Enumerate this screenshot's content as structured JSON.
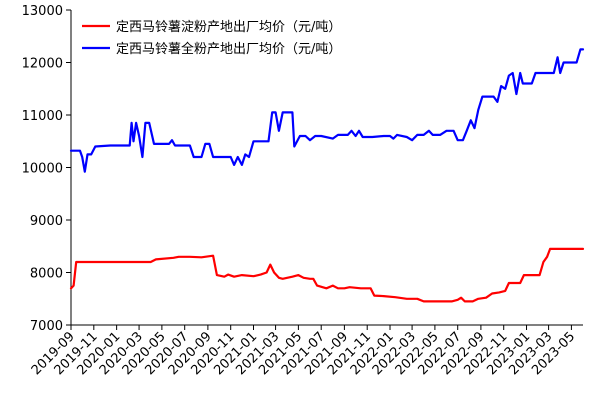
{
  "chart_data": {
    "type": "line",
    "title": "",
    "xlabel": "",
    "ylabel": "",
    "ylim": [
      7000,
      13000
    ],
    "yticks": [
      7000,
      8000,
      9000,
      10000,
      11000,
      12000,
      13000
    ],
    "xlim": [
      "2019-09",
      "2023-06"
    ],
    "xticks": [
      "2019-09",
      "2019-11",
      "2020-01",
      "2020-03",
      "2020-05",
      "2020-07",
      "2020-09",
      "2020-11",
      "2021-01",
      "2021-03",
      "2021-05",
      "2021-07",
      "2021-09",
      "2021-11",
      "2022-01",
      "2022-03",
      "2022-05",
      "2022-07",
      "2022-09",
      "2022-11",
      "2023-01",
      "2023-03",
      "2023-05"
    ],
    "grid": false,
    "legend": "top-left",
    "series": [
      {
        "name": "定西马铃薯淀粉产地出厂均价（元/吨）",
        "color": "#ff0000",
        "points": [
          [
            "2019-09-01",
            7700
          ],
          [
            "2019-09-08",
            7750
          ],
          [
            "2019-09-15",
            8200
          ],
          [
            "2019-10-15",
            8200
          ],
          [
            "2019-12-15",
            8200
          ],
          [
            "2020-02-15",
            8200
          ],
          [
            "2020-04-01",
            8200
          ],
          [
            "2020-04-15",
            8250
          ],
          [
            "2020-06-01",
            8280
          ],
          [
            "2020-06-15",
            8300
          ],
          [
            "2020-07-15",
            8300
          ],
          [
            "2020-08-15",
            8290
          ],
          [
            "2020-09-15",
            8320
          ],
          [
            "2020-09-25",
            7950
          ],
          [
            "2020-10-15",
            7920
          ],
          [
            "2020-10-25",
            7960
          ],
          [
            "2020-11-10",
            7920
          ],
          [
            "2020-12-01",
            7950
          ],
          [
            "2021-01-01",
            7930
          ],
          [
            "2021-01-20",
            7960
          ],
          [
            "2021-02-05",
            8000
          ],
          [
            "2021-02-15",
            8150
          ],
          [
            "2021-02-25",
            8000
          ],
          [
            "2021-03-10",
            7900
          ],
          [
            "2021-03-20",
            7880
          ],
          [
            "2021-04-01",
            7900
          ],
          [
            "2021-04-15",
            7920
          ],
          [
            "2021-05-01",
            7950
          ],
          [
            "2021-05-15",
            7900
          ],
          [
            "2021-06-01",
            7880
          ],
          [
            "2021-06-10",
            7880
          ],
          [
            "2021-06-20",
            7750
          ],
          [
            "2021-07-15",
            7700
          ],
          [
            "2021-08-01",
            7750
          ],
          [
            "2021-08-15",
            7700
          ],
          [
            "2021-09-01",
            7700
          ],
          [
            "2021-09-15",
            7720
          ],
          [
            "2021-10-15",
            7700
          ],
          [
            "2021-11-01",
            7700
          ],
          [
            "2021-11-10",
            7700
          ],
          [
            "2021-11-20",
            7560
          ],
          [
            "2021-12-15",
            7550
          ],
          [
            "2022-01-15",
            7530
          ],
          [
            "2022-02-15",
            7500
          ],
          [
            "2022-03-15",
            7500
          ],
          [
            "2022-04-01",
            7450
          ],
          [
            "2022-05-15",
            7450
          ],
          [
            "2022-06-15",
            7450
          ],
          [
            "2022-07-01",
            7480
          ],
          [
            "2022-07-10",
            7520
          ],
          [
            "2022-07-20",
            7450
          ],
          [
            "2022-08-10",
            7450
          ],
          [
            "2022-08-25",
            7500
          ],
          [
            "2022-09-15",
            7520
          ],
          [
            "2022-10-01",
            7600
          ],
          [
            "2022-10-20",
            7620
          ],
          [
            "2022-11-05",
            7650
          ],
          [
            "2022-11-15",
            7800
          ],
          [
            "2022-12-15",
            7800
          ],
          [
            "2022-12-25",
            7950
          ],
          [
            "2023-01-15",
            7950
          ],
          [
            "2023-02-05",
            7950
          ],
          [
            "2023-02-15",
            8200
          ],
          [
            "2023-02-25",
            8300
          ],
          [
            "2023-03-05",
            8450
          ],
          [
            "2023-04-15",
            8450
          ],
          [
            "2023-06-01",
            8450
          ]
        ]
      },
      {
        "name": "定西马铃薯全粉产地出厂均价（元/吨）",
        "color": "#0000ff",
        "points": [
          [
            "2019-09-01",
            10320
          ],
          [
            "2019-09-25",
            10320
          ],
          [
            "2019-10-01",
            10200
          ],
          [
            "2019-10-08",
            9920
          ],
          [
            "2019-10-15",
            10250
          ],
          [
            "2019-10-25",
            10250
          ],
          [
            "2019-11-05",
            10400
          ],
          [
            "2019-12-15",
            10420
          ],
          [
            "2020-01-15",
            10420
          ],
          [
            "2020-02-05",
            10420
          ],
          [
            "2020-02-10",
            10850
          ],
          [
            "2020-02-15",
            10500
          ],
          [
            "2020-02-22",
            10850
          ],
          [
            "2020-03-01",
            10600
          ],
          [
            "2020-03-10",
            10200
          ],
          [
            "2020-03-18",
            10850
          ],
          [
            "2020-03-28",
            10850
          ],
          [
            "2020-04-10",
            10450
          ],
          [
            "2020-05-20",
            10450
          ],
          [
            "2020-05-28",
            10520
          ],
          [
            "2020-06-05",
            10420
          ],
          [
            "2020-07-01",
            10420
          ],
          [
            "2020-07-15",
            10420
          ],
          [
            "2020-07-25",
            10200
          ],
          [
            "2020-08-15",
            10200
          ],
          [
            "2020-08-25",
            10450
          ],
          [
            "2020-09-05",
            10450
          ],
          [
            "2020-09-15",
            10200
          ],
          [
            "2020-10-01",
            10200
          ],
          [
            "2020-10-20",
            10200
          ],
          [
            "2020-11-01",
            10200
          ],
          [
            "2020-11-10",
            10050
          ],
          [
            "2020-11-20",
            10200
          ],
          [
            "2020-12-01",
            10050
          ],
          [
            "2020-12-10",
            10250
          ],
          [
            "2020-12-20",
            10200
          ],
          [
            "2021-01-01",
            10500
          ],
          [
            "2021-01-20",
            10500
          ],
          [
            "2021-02-10",
            10500
          ],
          [
            "2021-02-20",
            11050
          ],
          [
            "2021-03-01",
            11050
          ],
          [
            "2021-03-10",
            10700
          ],
          [
            "2021-03-20",
            11050
          ],
          [
            "2021-04-15",
            11050
          ],
          [
            "2021-04-20",
            10400
          ],
          [
            "2021-05-05",
            10600
          ],
          [
            "2021-05-20",
            10600
          ],
          [
            "2021-06-01",
            10520
          ],
          [
            "2021-06-15",
            10600
          ],
          [
            "2021-07-01",
            10600
          ],
          [
            "2021-08-01",
            10550
          ],
          [
            "2021-08-15",
            10620
          ],
          [
            "2021-09-10",
            10620
          ],
          [
            "2021-09-20",
            10700
          ],
          [
            "2021-10-01",
            10600
          ],
          [
            "2021-10-10",
            10700
          ],
          [
            "2021-10-20",
            10580
          ],
          [
            "2021-11-15",
            10580
          ],
          [
            "2021-12-15",
            10600
          ],
          [
            "2022-01-01",
            10600
          ],
          [
            "2022-01-10",
            10550
          ],
          [
            "2022-01-20",
            10620
          ],
          [
            "2022-02-15",
            10580
          ],
          [
            "2022-03-01",
            10520
          ],
          [
            "2022-03-15",
            10620
          ],
          [
            "2022-04-01",
            10620
          ],
          [
            "2022-04-15",
            10700
          ],
          [
            "2022-04-25",
            10620
          ],
          [
            "2022-05-15",
            10620
          ],
          [
            "2022-06-01",
            10700
          ],
          [
            "2022-06-20",
            10700
          ],
          [
            "2022-07-01",
            10520
          ],
          [
            "2022-07-15",
            10520
          ],
          [
            "2022-07-25",
            10700
          ],
          [
            "2022-08-05",
            10900
          ],
          [
            "2022-08-15",
            10750
          ],
          [
            "2022-08-25",
            11100
          ],
          [
            "2022-09-05",
            11350
          ],
          [
            "2022-10-05",
            11350
          ],
          [
            "2022-10-15",
            11250
          ],
          [
            "2022-10-25",
            11550
          ],
          [
            "2022-11-05",
            11500
          ],
          [
            "2022-11-15",
            11750
          ],
          [
            "2022-11-25",
            11800
          ],
          [
            "2022-12-05",
            11400
          ],
          [
            "2022-12-15",
            11800
          ],
          [
            "2022-12-22",
            11600
          ],
          [
            "2023-01-15",
            11600
          ],
          [
            "2023-01-25",
            11800
          ],
          [
            "2023-03-15",
            11800
          ],
          [
            "2023-03-25",
            12100
          ],
          [
            "2023-04-01",
            11800
          ],
          [
            "2023-04-10",
            12000
          ],
          [
            "2023-05-01",
            12000
          ],
          [
            "2023-05-15",
            12000
          ],
          [
            "2023-05-25",
            12250
          ],
          [
            "2023-06-01",
            12250
          ]
        ]
      }
    ]
  }
}
